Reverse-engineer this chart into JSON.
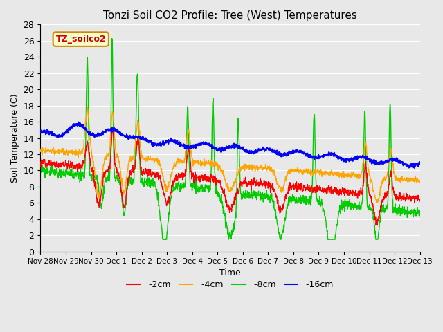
{
  "title": "Tonzi Soil CO2 Profile: Tree (West) Temperatures",
  "xlabel": "Time",
  "ylabel": "Soil Temperature (C)",
  "ylim": [
    0,
    28
  ],
  "yticks": [
    0,
    2,
    4,
    6,
    8,
    10,
    12,
    14,
    16,
    18,
    20,
    22,
    24,
    26,
    28
  ],
  "colors": {
    "-2cm": "#ff0000",
    "-4cm": "#ffa500",
    "-8cm": "#00cc00",
    "-16cm": "#0000ff"
  },
  "legend_label": "TZ_soilco2",
  "legend_bg": "#ffffcc",
  "legend_border": "#cc8800",
  "bg_color": "#e8e8e8",
  "plot_bg": "#e8e8e8",
  "grid_color": "#ffffff",
  "line_width": 1.0,
  "xtick_positions": [
    0,
    1,
    2,
    3,
    4,
    5,
    6,
    7,
    8,
    9,
    10,
    11,
    12,
    13,
    14,
    15
  ],
  "xtick_labels": [
    "Nov 28",
    "Nov 29",
    "Nov 30",
    "Dec 1",
    "Dec 2",
    "Dec 3",
    "Dec 4",
    "Dec 5",
    "Dec 6",
    "Dec 7",
    "Dec 8",
    "Dec 9",
    "Dec 10",
    "Dec 11",
    "Dec 12",
    "Dec 13"
  ]
}
